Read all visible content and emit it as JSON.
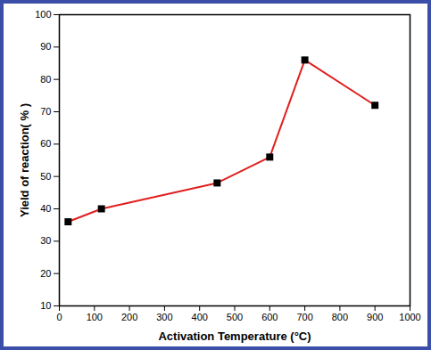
{
  "chart_data": {
    "type": "line",
    "x_label": "Activation Temperature (°C)",
    "y_label": "Yield of reaction( % )",
    "x": [
      25,
      120,
      450,
      600,
      700,
      900
    ],
    "series": [
      {
        "name": "Yield",
        "color": "#e02020",
        "marker": "square",
        "values": [
          36,
          40,
          48,
          56,
          86,
          72
        ]
      }
    ],
    "xlim": [
      0,
      1000
    ],
    "xticks": [
      0,
      100,
      200,
      300,
      400,
      500,
      600,
      700,
      800,
      900,
      1000
    ],
    "ylim": [
      10,
      100
    ],
    "yticks": [
      10,
      20,
      30,
      40,
      50,
      60,
      70,
      80,
      90,
      100
    ],
    "grid": false
  }
}
